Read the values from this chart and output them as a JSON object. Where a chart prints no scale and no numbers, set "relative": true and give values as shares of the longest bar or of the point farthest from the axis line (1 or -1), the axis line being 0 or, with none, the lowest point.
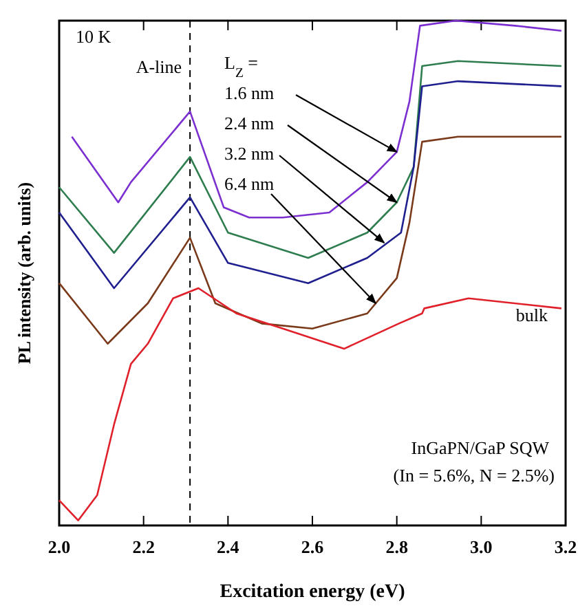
{
  "chart_data": {
    "type": "line",
    "relative": true,
    "xlabel": "Excitation energy (eV)",
    "ylabel": "PL intensity (arb. units)",
    "xlim": [
      2.0,
      3.2
    ],
    "xticks": [
      {
        "value": 2.0,
        "label": "2.0"
      },
      {
        "value": 2.2,
        "label": "2.2"
      },
      {
        "value": 2.4,
        "label": "2.4"
      },
      {
        "value": 2.6,
        "label": "2.6"
      },
      {
        "value": 2.8,
        "label": "2.8"
      },
      {
        "value": 3.0,
        "label": "3.0"
      },
      {
        "value": 3.2,
        "label": "3.2"
      }
    ],
    "series": [
      {
        "color": "#7b2fd0",
        "x": [
          2.03,
          2.14,
          2.17,
          2.31,
          2.39,
          2.45,
          2.53,
          2.64,
          2.73,
          2.8,
          2.83,
          2.855,
          2.94,
          3.08,
          3.19
        ],
        "values": [
          0.77,
          0.64,
          0.68,
          0.82,
          0.63,
          0.61,
          0.61,
          0.62,
          0.68,
          0.74,
          0.84,
          0.99,
          1.0,
          0.99,
          0.98
        ]
      },
      {
        "color": "#2e7d4f",
        "x": [
          2.0,
          2.13,
          2.31,
          2.4,
          2.59,
          2.73,
          2.8,
          2.84,
          2.86,
          2.945,
          3.19
        ],
        "values": [
          0.67,
          0.54,
          0.73,
          0.58,
          0.53,
          0.58,
          0.64,
          0.71,
          0.91,
          0.92,
          0.91
        ]
      },
      {
        "color": "#1f1f8f",
        "x": [
          2.0,
          2.13,
          2.31,
          2.4,
          2.59,
          2.73,
          2.81,
          2.84,
          2.86,
          2.945,
          3.19
        ],
        "values": [
          0.62,
          0.47,
          0.65,
          0.52,
          0.48,
          0.53,
          0.58,
          0.71,
          0.87,
          0.88,
          0.87
        ]
      },
      {
        "color": "#7a3a1a",
        "x": [
          2.0,
          2.115,
          2.21,
          2.31,
          2.37,
          2.48,
          2.6,
          2.73,
          2.8,
          2.83,
          2.86,
          2.945,
          3.19
        ],
        "values": [
          0.48,
          0.36,
          0.44,
          0.57,
          0.44,
          0.4,
          0.39,
          0.42,
          0.49,
          0.6,
          0.76,
          0.77,
          0.77
        ]
      },
      {
        "color": "#e0202a",
        "x": [
          2.0,
          2.045,
          2.09,
          2.13,
          2.17,
          2.21,
          2.27,
          2.33,
          2.42,
          2.53,
          2.675,
          2.805,
          2.86,
          2.865,
          2.97,
          3.19
        ],
        "values": [
          0.05,
          0.01,
          0.06,
          0.2,
          0.32,
          0.36,
          0.45,
          0.47,
          0.42,
          0.39,
          0.35,
          0.4,
          0.42,
          0.43,
          0.45,
          0.43
        ]
      }
    ],
    "ref_lines": [
      {
        "axis": "x",
        "value": 2.31,
        "label": "A-line",
        "color": "#000000",
        "line_style": "dashed"
      }
    ],
    "annotations": [
      "10 K",
      "L$_{Z}$ =",
      "InGaPN/GaP SQW",
      "(In = 5.6%, N = 2.5%)",
      {
        "text": "1.6 nm",
        "x": 2.8,
        "y": 0.74
      },
      {
        "text": "2.4 nm",
        "x": 2.8,
        "y": 0.64
      },
      {
        "text": "3.2 nm",
        "x": 2.77,
        "y": 0.56
      },
      {
        "text": "6.4 nm",
        "x": 2.75,
        "y": 0.44
      },
      {
        "text": "bulk",
        "x": 3.12,
        "y": 0.44
      }
    ]
  }
}
